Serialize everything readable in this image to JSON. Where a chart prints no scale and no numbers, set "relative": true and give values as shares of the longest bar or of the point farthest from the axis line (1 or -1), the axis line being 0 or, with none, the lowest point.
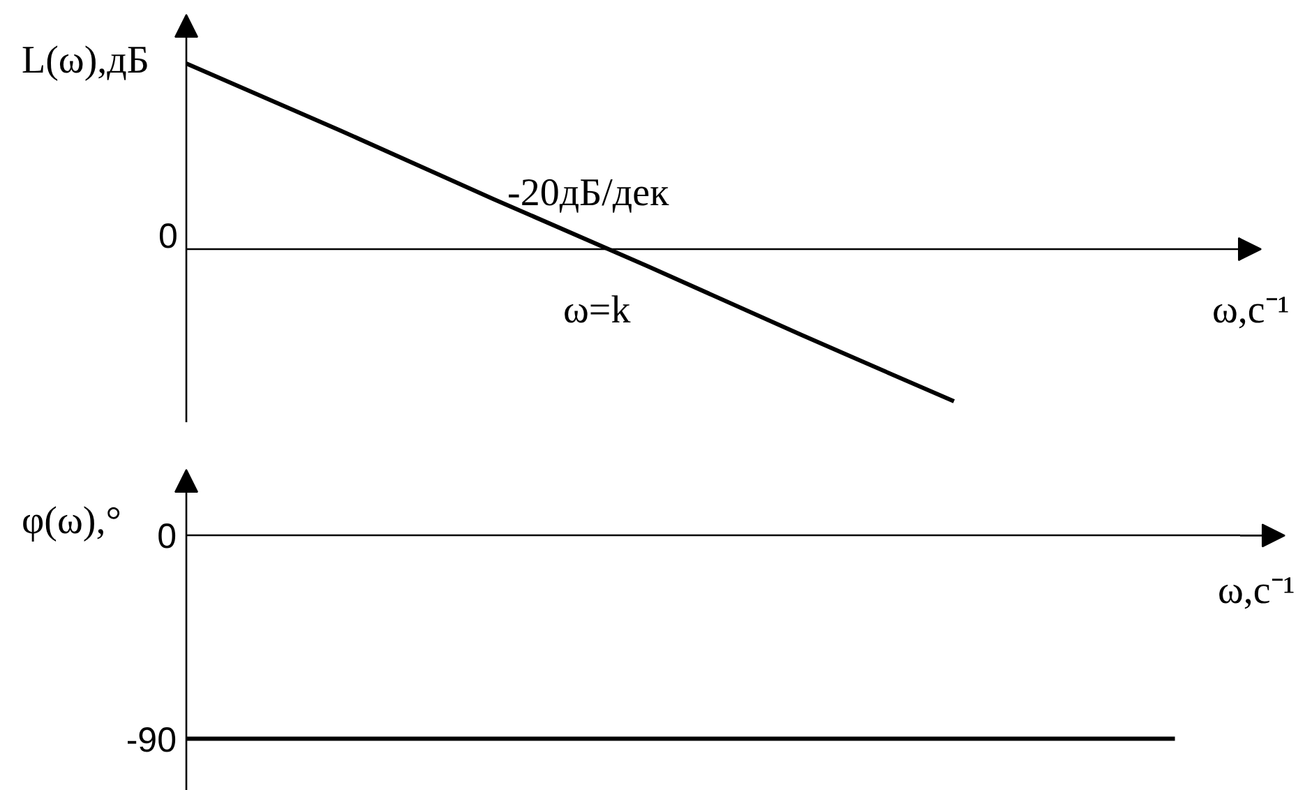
{
  "chart_data": [
    {
      "type": "line",
      "ylabel": "L(ω),дБ",
      "xlabel": "ω,с⁻¹",
      "categories": [
        null,
        null,
        null,
        null,
        null,
        null,
        null,
        null
      ],
      "relative": true,
      "values": [
        1,
        0.64,
        0.27,
        -0.09,
        -0.46,
        -0.82,
        null,
        null
      ],
      "color": "#000000",
      "line_style": "solid",
      "annotations": [
        "0",
        "-20дБ/дек",
        "ω=k"
      ]
    },
    {
      "type": "line",
      "ylabel": "φ(ω),°",
      "xlabel": "ω,с⁻¹",
      "categories": [
        null,
        null,
        null,
        null,
        null,
        null,
        null,
        null,
        null,
        null,
        null
      ],
      "values": [
        -90,
        -90,
        -90,
        -90,
        -90,
        -90,
        -90,
        -90,
        -90,
        -90,
        null
      ],
      "color": "#000000",
      "line_style": "solid",
      "ylim": [
        -113,
        10
      ],
      "yticks": [
        0,
        -90
      ]
    }
  ]
}
